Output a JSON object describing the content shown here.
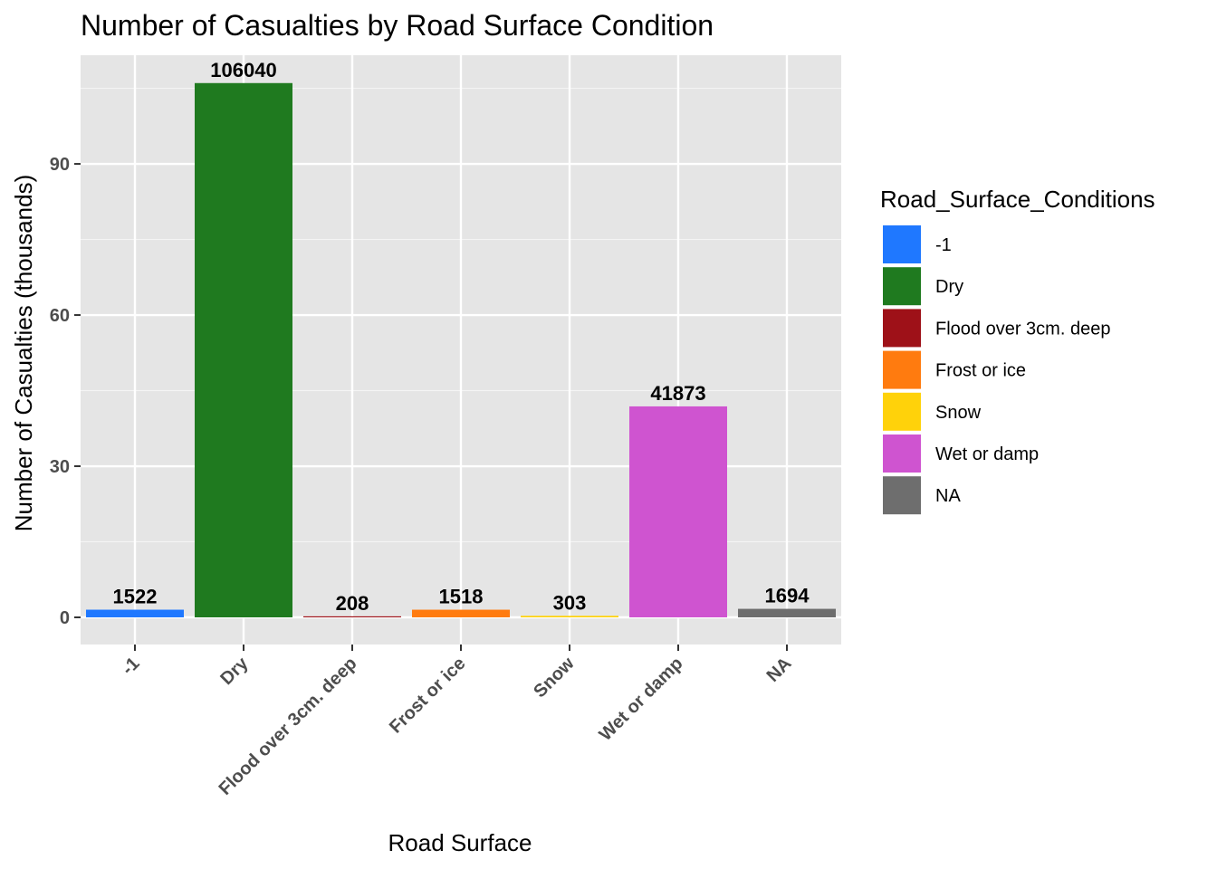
{
  "chart_data": {
    "type": "bar",
    "title": "Number of Casualties by Road Surface Condition",
    "xlabel": "Road Surface",
    "ylabel": "Number of Casualties (thousands)",
    "ylim": [
      0,
      110
    ],
    "yticks": [
      0,
      30,
      60,
      90
    ],
    "grid": true,
    "legend": {
      "title": "Road_Surface_Conditions",
      "placement": "right"
    },
    "categories": [
      "-1",
      "Dry",
      "Flood over 3cm. deep",
      "Frost or ice",
      "Snow",
      "Wet or damp",
      "NA"
    ],
    "values": [
      1.522,
      106.04,
      0.208,
      1.518,
      0.303,
      41.873,
      1.694
    ],
    "data_labels": [
      "1522",
      "106040",
      "208",
      "1518",
      "303",
      "41873",
      "1694"
    ],
    "colors": [
      "#1f78ff",
      "#1f7a1f",
      "#9e1118",
      "#ff7b0f",
      "#ffd20a",
      "#cf54d0",
      "#6e6e6e"
    ]
  }
}
